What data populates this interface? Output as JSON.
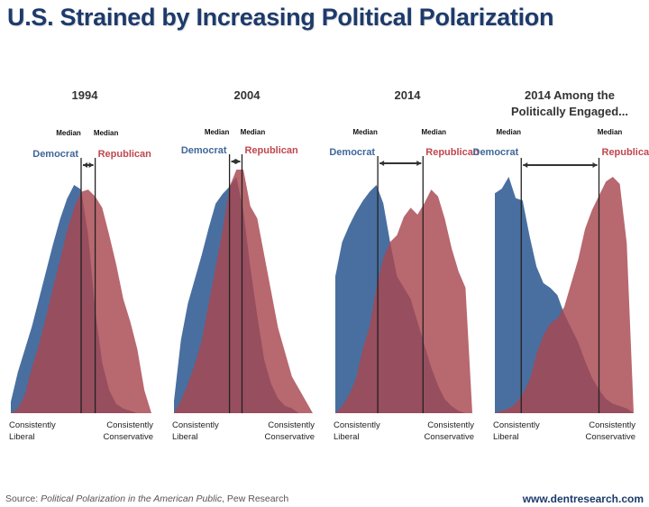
{
  "title": "U.S. Strained by Increasing Political Polarization",
  "source": {
    "prefix": "Source: ",
    "work": "Political Polarization in the American Public",
    "suffix": ", Pew Research"
  },
  "website": "www.dentresearch.com",
  "colors": {
    "title": "#1d3a6b",
    "democrat": "#3f679b",
    "republican": "#a8474f",
    "median_line": "#222222"
  },
  "chart_data": {
    "type": "area",
    "title": "U.S. Strained by Increasing Political Polarization",
    "xlabel_left": "Consistently Liberal",
    "xlabel_right": "Consistently Conservative",
    "x_scale": "ideological consistency, 0 = consistently liberal, 1 = consistently conservative",
    "median_label": "Median",
    "series_names": [
      "Democrat",
      "Republican"
    ],
    "panels": [
      {
        "title": "1994",
        "democrat_median": 0.5,
        "republican_median": 0.6,
        "democrat": [
          0.05,
          0.18,
          0.28,
          0.38,
          0.5,
          0.62,
          0.74,
          0.85,
          0.94,
          1.0,
          0.98,
          0.78,
          0.45,
          0.22,
          0.1,
          0.04,
          0.02,
          0.01,
          0.0,
          0.0,
          0.0
        ],
        "republican": [
          0.0,
          0.02,
          0.08,
          0.2,
          0.3,
          0.42,
          0.55,
          0.67,
          0.8,
          0.9,
          0.97,
          0.98,
          0.95,
          0.9,
          0.78,
          0.65,
          0.5,
          0.4,
          0.28,
          0.1,
          0.0
        ]
      },
      {
        "title": "2004",
        "democrat_median": 0.4,
        "republican_median": 0.49,
        "democrat": [
          0.05,
          0.3,
          0.45,
          0.55,
          0.65,
          0.76,
          0.86,
          0.9,
          0.93,
          0.97,
          0.83,
          0.6,
          0.4,
          0.22,
          0.12,
          0.06,
          0.03,
          0.02,
          0.0,
          0.0,
          0.0
        ],
        "republican": [
          0.0,
          0.05,
          0.12,
          0.2,
          0.3,
          0.45,
          0.6,
          0.75,
          0.93,
          1.0,
          1.0,
          0.85,
          0.8,
          0.65,
          0.5,
          0.35,
          0.25,
          0.15,
          0.1,
          0.05,
          0.0
        ]
      },
      {
        "title": "2014",
        "democrat_median": 0.31,
        "republican_median": 0.64,
        "democrat": [
          0.6,
          0.75,
          0.82,
          0.88,
          0.93,
          0.97,
          1.0,
          0.92,
          0.75,
          0.6,
          0.55,
          0.5,
          0.4,
          0.3,
          0.2,
          0.12,
          0.06,
          0.03,
          0.01,
          0.0,
          0.0
        ],
        "republican": [
          0.0,
          0.03,
          0.08,
          0.15,
          0.28,
          0.38,
          0.55,
          0.68,
          0.75,
          0.78,
          0.86,
          0.9,
          0.87,
          0.92,
          0.98,
          0.95,
          0.85,
          0.72,
          0.62,
          0.55,
          0.0
        ]
      },
      {
        "title": "2014 Among the Politically Engaged...",
        "democrat_median": 0.19,
        "republican_median": 0.75,
        "democrat": [
          0.93,
          0.95,
          1.0,
          0.91,
          0.9,
          0.75,
          0.62,
          0.55,
          0.53,
          0.5,
          0.42,
          0.36,
          0.3,
          0.22,
          0.15,
          0.1,
          0.06,
          0.04,
          0.03,
          0.02,
          0.0
        ],
        "republican": [
          0.0,
          0.01,
          0.02,
          0.04,
          0.08,
          0.14,
          0.25,
          0.33,
          0.38,
          0.4,
          0.45,
          0.55,
          0.65,
          0.78,
          0.86,
          0.92,
          0.98,
          1.0,
          0.97,
          0.72,
          0.0
        ]
      }
    ]
  }
}
